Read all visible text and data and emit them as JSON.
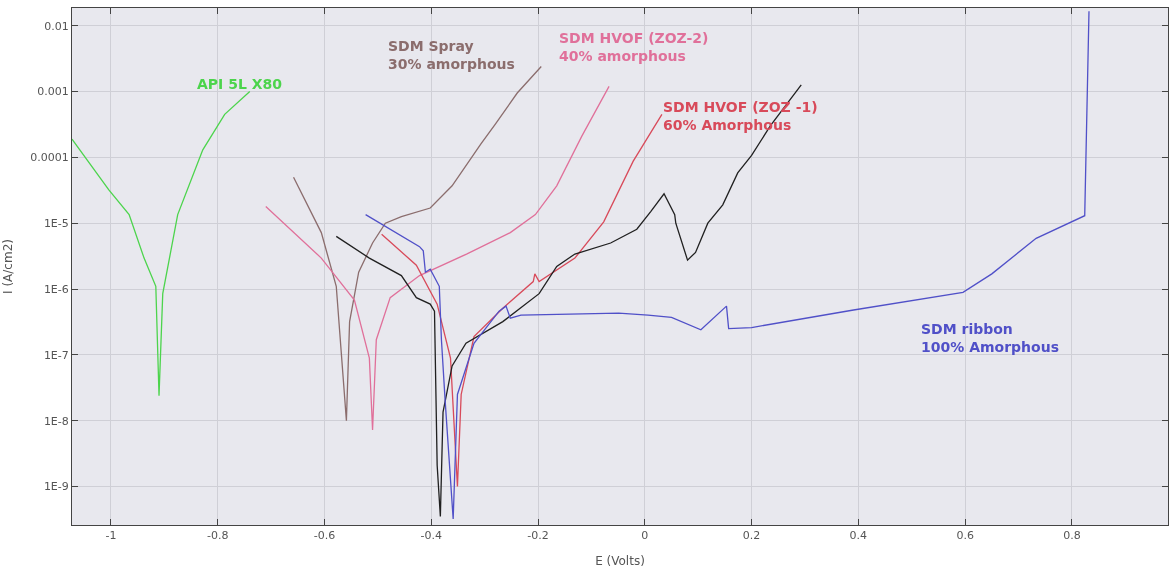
{
  "chart_data": {
    "type": "line",
    "xlabel": "E (Volts)",
    "ylabel": "I (A/cm2)",
    "log": "y",
    "grid": true,
    "legend": false,
    "marker": "none",
    "line_style": "solid",
    "xlim": [
      -1.073,
      0.98
    ],
    "xticks": [
      -1,
      -0.8,
      -0.6,
      -0.4,
      -0.2,
      0,
      0.2,
      0.4,
      0.6,
      0.8
    ],
    "ylim": [
      2.6e-10,
      0.0186
    ],
    "yticks": [
      {
        "value": 1e-09,
        "label": "1E-9"
      },
      {
        "value": 1e-08,
        "label": "1E-8"
      },
      {
        "value": 1e-07,
        "label": "1E-7"
      },
      {
        "value": 1e-06,
        "label": "1E-6"
      },
      {
        "value": 1e-05,
        "label": "1E-5"
      },
      {
        "value": 0.0001,
        "label": "0.0001"
      },
      {
        "value": 0.001,
        "label": "0.001"
      },
      {
        "value": 0.01,
        "label": "0.01"
      }
    ],
    "series": [
      {
        "name": "API 5L X80",
        "color": "#4cd44c",
        "x": [
          -1.073,
          -1.004,
          -0.966,
          -0.938,
          -0.916,
          -0.91,
          -0.903,
          -0.875,
          -0.828,
          -0.787,
          -0.74
        ],
        "values": [
          0.00019,
          3.2e-05,
          1.35e-05,
          2.95e-06,
          1.1e-06,
          2.4e-08,
          8.5e-07,
          1.35e-05,
          0.00013,
          0.00045,
          0.001
        ]
      },
      {
        "name": "SDM Spray\n30% amorphous",
        "color": "#8b6d6d",
        "x": [
          -0.658,
          -0.606,
          -0.578,
          -0.559,
          -0.553,
          -0.536,
          -0.51,
          -0.486,
          -0.456,
          -0.402,
          -0.361,
          -0.307,
          -0.28,
          -0.239,
          -0.194
        ],
        "values": [
          5e-05,
          7.2e-06,
          1.1e-06,
          1e-08,
          3.2e-07,
          1.8e-06,
          5e-06,
          1e-05,
          1.26e-05,
          1.7e-05,
          3.7e-05,
          0.00016,
          0.00032,
          0.00095,
          0.0024
        ]
      },
      {
        "name": "SDM HVOF (ZOZ-2)\n40% amorphous",
        "color": "#e0709a",
        "x": [
          -0.71,
          -0.606,
          -0.544,
          -0.516,
          -0.51,
          -0.503,
          -0.477,
          -0.422,
          -0.334,
          -0.252,
          -0.205,
          -0.165,
          -0.118,
          -0.067
        ],
        "values": [
          1.8e-05,
          2.95e-06,
          6.8e-07,
          8.9e-08,
          7.2e-09,
          1.7e-07,
          7.4e-07,
          1.6e-06,
          3.4e-06,
          7.2e-06,
          1.35e-05,
          3.7e-05,
          0.00021,
          0.0012
        ]
      },
      {
        "name": "SDM HVOF (ZOZ -1)\n60% Amorphous",
        "color": "#d84a5a",
        "x": [
          -0.493,
          -0.428,
          -0.389,
          -0.364,
          -0.351,
          -0.344,
          -0.32,
          -0.266,
          -0.209,
          -0.206,
          -0.198,
          -0.131,
          -0.077,
          -0.022,
          0.032
        ],
        "values": [
          6.8e-06,
          2.3e-06,
          5.9e-07,
          8.9e-08,
          1e-09,
          2.5e-08,
          1.9e-07,
          5.1e-07,
          1.3e-06,
          1.7e-06,
          1.3e-06,
          2.95e-06,
          1.05e-05,
          8.7e-05,
          0.00045
        ]
      },
      {
        "color": "#202020",
        "x": [
          -0.578,
          -0.516,
          -0.456,
          -0.428,
          -0.402,
          -0.394,
          -0.389,
          -0.383,
          -0.378,
          -0.361,
          -0.335,
          -0.266,
          -0.198,
          -0.165,
          -0.131,
          -0.064,
          -0.015,
          0.011,
          0.036,
          0.056,
          0.058,
          0.08,
          0.095,
          0.118,
          0.146,
          0.174,
          0.2,
          0.235,
          0.293
        ],
        "values": [
          6.3e-06,
          2.95e-06,
          1.6e-06,
          7.4e-07,
          5.9e-07,
          4.6e-07,
          2.1e-09,
          3.5e-10,
          1.35e-08,
          6.8e-08,
          1.5e-07,
          3.2e-07,
          8.5e-07,
          2.2e-06,
          3.4e-06,
          5e-06,
          8.1e-06,
          1.5e-05,
          2.8e-05,
          1.35e-05,
          1e-05,
          2.75e-06,
          3.6e-06,
          1e-05,
          1.9e-05,
          5.8e-05,
          0.000107,
          0.0003,
          0.00126
        ]
      },
      {
        "name": "SDM ribbon\n100% Amorphous",
        "color": "#5050c8",
        "x": [
          -0.523,
          -0.422,
          -0.415,
          -0.411,
          -0.402,
          -0.385,
          -0.381,
          -0.374,
          -0.359,
          -0.351,
          -0.32,
          -0.273,
          -0.26,
          -0.252,
          -0.232,
          -0.049,
          0.006,
          0.05,
          0.105,
          0.153,
          0.157,
          0.2,
          0.391,
          0.596,
          0.65,
          0.733,
          0.824,
          0.832
        ],
        "values": [
          1.35e-05,
          4.4e-06,
          3.8e-06,
          1.8e-06,
          2e-06,
          1.1e-06,
          1.7e-07,
          2e-08,
          3.2e-10,
          2.5e-08,
          1.5e-07,
          4.6e-07,
          5.5e-07,
          3.6e-07,
          4e-07,
          4.3e-07,
          4e-07,
          3.7e-07,
          2.4e-07,
          5.5e-07,
          2.5e-07,
          2.6e-07,
          4.8e-07,
          8.9e-07,
          1.7e-06,
          5.9e-06,
          1.3e-05,
          0.0166
        ]
      }
    ]
  }
}
